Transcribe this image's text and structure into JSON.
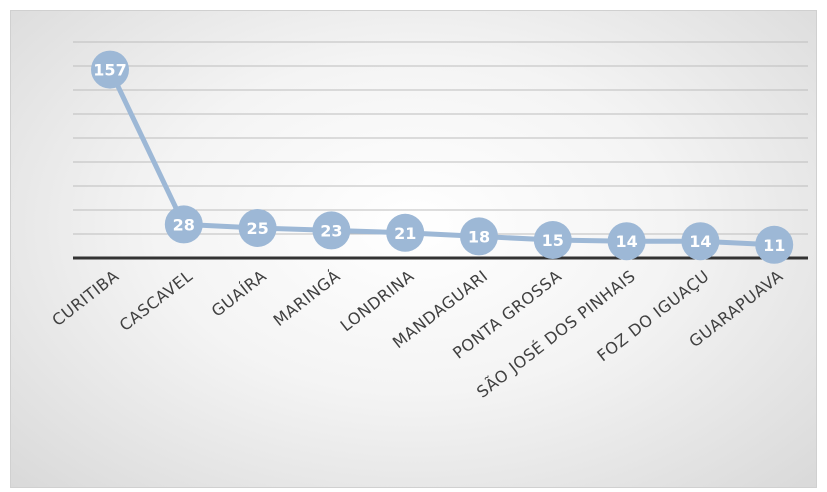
{
  "chart_data": {
    "type": "line",
    "title": "",
    "xlabel": "",
    "ylabel": "",
    "categories": [
      "CURITIBA",
      "CASCAVEL",
      "GUAÍRA",
      "MARINGÁ",
      "LONDRINA",
      "MANDAGUARI",
      "PONTA GROSSA",
      "SÃO JOSÉ DOS PINHAIS",
      "FOZ DO IGUAÇU",
      "GUARAPUAVA"
    ],
    "series": [
      {
        "values": [
          157,
          28,
          25,
          23,
          21,
          18,
          15,
          14,
          14,
          11
        ]
      }
    ],
    "ylim": [
      0,
      180
    ],
    "grid": true,
    "legend": "none",
    "data_labels": true,
    "colors": {
      "series": "#9db8d6",
      "axis": "#333333",
      "grid": "#bdbdbd",
      "label_text": "#ffffff",
      "tick_text": "#404040"
    }
  }
}
